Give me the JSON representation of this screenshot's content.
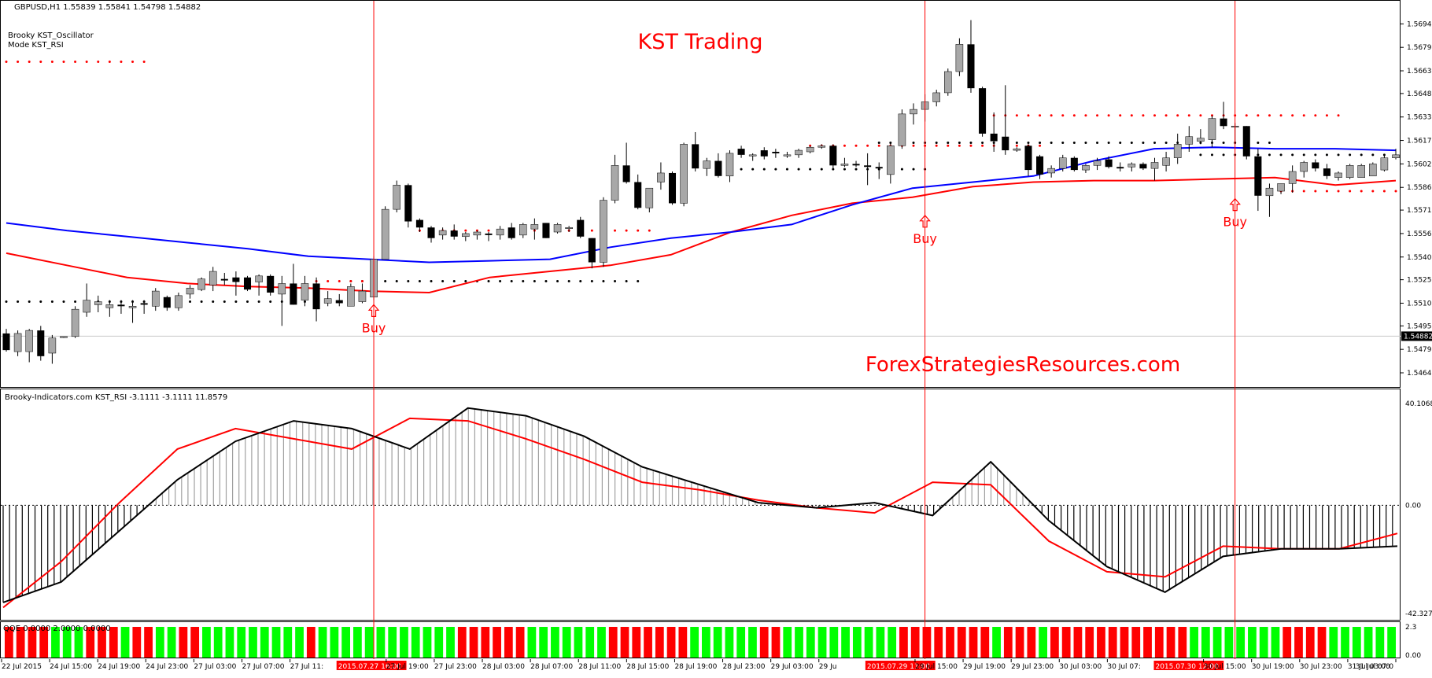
{
  "main_pane": {
    "header": "GBPUSD,H1  1.55839 1.55841 1.54798 1.54882",
    "indicator_name": "Brooky KST_Oscillator",
    "indicator_mode": "Mode KST_RSI",
    "watermark_title": "KST Trading",
    "watermark_site": "ForexStrategiesResources.com",
    "buy_labels": [
      "Buy",
      "Buy",
      "Buy"
    ],
    "current_price": "1.54882",
    "price_ticks": [
      "1.56945",
      "1.56790",
      "1.56635",
      "1.56485",
      "1.56330",
      "1.56175",
      "1.56020",
      "1.55865",
      "1.55715",
      "1.55560",
      "1.55405",
      "1.55255",
      "1.55100",
      "1.54950",
      "1.54795",
      "1.54640"
    ]
  },
  "oscillator_pane": {
    "header": "Brooky-Indicators.com KST_RSI -3.1111 -3.1111 11.8579",
    "ticks": [
      "40.1068",
      "0.00",
      "-42.3272"
    ]
  },
  "qqe_pane": {
    "header": "QQE 0.0000 2.0000 0.0000",
    "ticks": [
      "2.3",
      "0.00"
    ]
  },
  "time_axis": {
    "labels": [
      "22 Jul 2015",
      "24 Jul 15:00",
      "24 Jul 19:00",
      "24 Jul 23:00",
      "27 Jul 03:00",
      "27 Jul 07:00",
      "27 Jul 11:",
      "2015.07.27 16:00",
      "27 Jul 19:00",
      "27 Jul 23:00",
      "28 Jul 03:00",
      "28 Jul 07:00",
      "28 Jul 11:00",
      "28 Jul 15:00",
      "28 Jul 19:00",
      "28 Jul 23:00",
      "29 Jul 03:00",
      "29 Ju",
      "2015.07.29 11:00",
      "29 Jul 15:00",
      "29 Jul 19:00",
      "29 Jul 23:00",
      "30 Jul 03:00",
      "30 Jul 07:",
      "2015.07.30 12:00",
      "30 Jul 15:00",
      "30 Jul 19:00",
      "30 Jul 23:00",
      "31 Jul 03:00",
      "31 Jul 07:0"
    ]
  },
  "colors": {
    "bull_candle": "#a8a8a8",
    "bear_candle": "#000000",
    "ma_fast": "#0000ff",
    "ma_slow": "#ff0000",
    "signal_line": "#ff0000",
    "vline": "#ff0000",
    "qqe_up": "#00ff00",
    "qqe_down": "#ff0000",
    "qqe_neutral": "#808080",
    "watermark": "#ff0000"
  },
  "chart_data": {
    "type": "candlestick",
    "symbol": "GBPUSD",
    "timeframe": "H1",
    "y_range": [
      1.5464,
      1.5703
    ],
    "candles": [
      {
        "o": 1.549,
        "h": 1.5493,
        "l": 1.5478,
        "c": 1.5479
      },
      {
        "o": 1.5478,
        "h": 1.5492,
        "l": 1.5475,
        "c": 1.549
      },
      {
        "o": 1.5478,
        "h": 1.5493,
        "l": 1.5471,
        "c": 1.5492
      },
      {
        "o": 1.5492,
        "h": 1.5495,
        "l": 1.5472,
        "c": 1.5475
      },
      {
        "o": 1.5477,
        "h": 1.5489,
        "l": 1.547,
        "c": 1.5487
      },
      {
        "o": 1.5488,
        "h": 1.5488,
        "l": 1.5487,
        "c": 1.5488
      },
      {
        "o": 1.5488,
        "h": 1.5508,
        "l": 1.5487,
        "c": 1.5506
      },
      {
        "o": 1.5504,
        "h": 1.5523,
        "l": 1.5501,
        "c": 1.5512
      },
      {
        "o": 1.5509,
        "h": 1.5515,
        "l": 1.5504,
        "c": 1.5511
      },
      {
        "o": 1.5507,
        "h": 1.5512,
        "l": 1.5501,
        "c": 1.5509
      },
      {
        "o": 1.5509,
        "h": 1.5512,
        "l": 1.5503,
        "c": 1.5508
      },
      {
        "o": 1.5507,
        "h": 1.5512,
        "l": 1.5497,
        "c": 1.5508
      },
      {
        "o": 1.551,
        "h": 1.5512,
        "l": 1.5503,
        "c": 1.5509
      },
      {
        "o": 1.5508,
        "h": 1.552,
        "l": 1.5505,
        "c": 1.5518
      },
      {
        "o": 1.5514,
        "h": 1.5515,
        "l": 1.5505,
        "c": 1.5507
      },
      {
        "o": 1.5507,
        "h": 1.5517,
        "l": 1.5505,
        "c": 1.5515
      },
      {
        "o": 1.5516,
        "h": 1.5522,
        "l": 1.5513,
        "c": 1.552
      },
      {
        "o": 1.5519,
        "h": 1.5527,
        "l": 1.5518,
        "c": 1.5526
      },
      {
        "o": 1.5522,
        "h": 1.5534,
        "l": 1.5518,
        "c": 1.5531
      },
      {
        "o": 1.5526,
        "h": 1.553,
        "l": 1.5522,
        "c": 1.5525
      },
      {
        "o": 1.5527,
        "h": 1.5531,
        "l": 1.5515,
        "c": 1.5524
      },
      {
        "o": 1.5527,
        "h": 1.5528,
        "l": 1.5518,
        "c": 1.5519
      },
      {
        "o": 1.5524,
        "h": 1.5529,
        "l": 1.5515,
        "c": 1.5528
      },
      {
        "o": 1.5528,
        "h": 1.5529,
        "l": 1.5515,
        "c": 1.5517
      },
      {
        "o": 1.5516,
        "h": 1.5528,
        "l": 1.5495,
        "c": 1.5523
      },
      {
        "o": 1.5523,
        "h": 1.5536,
        "l": 1.5509,
        "c": 1.5509
      },
      {
        "o": 1.5512,
        "h": 1.5528,
        "l": 1.5508,
        "c": 1.5523
      },
      {
        "o": 1.5523,
        "h": 1.5527,
        "l": 1.5498,
        "c": 1.5506
      },
      {
        "o": 1.551,
        "h": 1.5518,
        "l": 1.5508,
        "c": 1.5513
      },
      {
        "o": 1.5512,
        "h": 1.5516,
        "l": 1.5508,
        "c": 1.551
      },
      {
        "o": 1.5508,
        "h": 1.5523,
        "l": 1.5508,
        "c": 1.5521
      },
      {
        "o": 1.5511,
        "h": 1.5523,
        "l": 1.551,
        "c": 1.5518
      },
      {
        "o": 1.5514,
        "h": 1.5541,
        "l": 1.5512,
        "c": 1.5539
      },
      {
        "o": 1.5539,
        "h": 1.5574,
        "l": 1.5539,
        "c": 1.5572
      },
      {
        "o": 1.5572,
        "h": 1.5591,
        "l": 1.557,
        "c": 1.5588
      },
      {
        "o": 1.5588,
        "h": 1.5589,
        "l": 1.556,
        "c": 1.5564
      },
      {
        "o": 1.5565,
        "h": 1.5566,
        "l": 1.5557,
        "c": 1.556
      },
      {
        "o": 1.556,
        "h": 1.5561,
        "l": 1.555,
        "c": 1.5553
      },
      {
        "o": 1.5555,
        "h": 1.556,
        "l": 1.5552,
        "c": 1.5558
      },
      {
        "o": 1.5558,
        "h": 1.5562,
        "l": 1.5552,
        "c": 1.5554
      },
      {
        "o": 1.5554,
        "h": 1.5557,
        "l": 1.5551,
        "c": 1.5556
      },
      {
        "o": 1.5555,
        "h": 1.5558,
        "l": 1.5552,
        "c": 1.5557
      },
      {
        "o": 1.5556,
        "h": 1.5557,
        "l": 1.5551,
        "c": 1.5555
      },
      {
        "o": 1.5555,
        "h": 1.5561,
        "l": 1.5552,
        "c": 1.5559
      },
      {
        "o": 1.556,
        "h": 1.5563,
        "l": 1.5552,
        "c": 1.5553
      },
      {
        "o": 1.5555,
        "h": 1.5563,
        "l": 1.5553,
        "c": 1.5562
      },
      {
        "o": 1.5559,
        "h": 1.5566,
        "l": 1.5552,
        "c": 1.5562
      },
      {
        "o": 1.5563,
        "h": 1.5563,
        "l": 1.5553,
        "c": 1.5553
      },
      {
        "o": 1.5557,
        "h": 1.5563,
        "l": 1.5556,
        "c": 1.5562
      },
      {
        "o": 1.556,
        "h": 1.5561,
        "l": 1.5557,
        "c": 1.556
      },
      {
        "o": 1.5565,
        "h": 1.5567,
        "l": 1.5553,
        "c": 1.5554
      },
      {
        "o": 1.5553,
        "h": 1.5553,
        "l": 1.5533,
        "c": 1.5537
      },
      {
        "o": 1.5537,
        "h": 1.558,
        "l": 1.5534,
        "c": 1.5578
      },
      {
        "o": 1.5578,
        "h": 1.5608,
        "l": 1.5576,
        "c": 1.5601
      },
      {
        "o": 1.5601,
        "h": 1.5616,
        "l": 1.5589,
        "c": 1.559
      },
      {
        "o": 1.559,
        "h": 1.5595,
        "l": 1.5572,
        "c": 1.5573
      },
      {
        "o": 1.5573,
        "h": 1.5586,
        "l": 1.557,
        "c": 1.5586
      },
      {
        "o": 1.559,
        "h": 1.5603,
        "l": 1.5585,
        "c": 1.5596
      },
      {
        "o": 1.5596,
        "h": 1.5597,
        "l": 1.5575,
        "c": 1.5576
      },
      {
        "o": 1.5576,
        "h": 1.5616,
        "l": 1.5574,
        "c": 1.5615
      },
      {
        "o": 1.5615,
        "h": 1.5623,
        "l": 1.5597,
        "c": 1.5599
      },
      {
        "o": 1.5599,
        "h": 1.5606,
        "l": 1.5594,
        "c": 1.5604
      },
      {
        "o": 1.5604,
        "h": 1.5609,
        "l": 1.5593,
        "c": 1.5594
      },
      {
        "o": 1.5594,
        "h": 1.5611,
        "l": 1.559,
        "c": 1.5609
      },
      {
        "o": 1.5612,
        "h": 1.5614,
        "l": 1.5606,
        "c": 1.5608
      },
      {
        "o": 1.5608,
        "h": 1.5609,
        "l": 1.5604,
        "c": 1.5608
      },
      {
        "o": 1.5611,
        "h": 1.5613,
        "l": 1.5605,
        "c": 1.5607
      },
      {
        "o": 1.561,
        "h": 1.5612,
        "l": 1.5606,
        "c": 1.5609
      },
      {
        "o": 1.5608,
        "h": 1.561,
        "l": 1.5606,
        "c": 1.5608
      },
      {
        "o": 1.5608,
        "h": 1.5612,
        "l": 1.5606,
        "c": 1.5611
      },
      {
        "o": 1.561,
        "h": 1.5614,
        "l": 1.5609,
        "c": 1.5613
      },
      {
        "o": 1.5613,
        "h": 1.5615,
        "l": 1.5612,
        "c": 1.5614
      },
      {
        "o": 1.5614,
        "h": 1.5615,
        "l": 1.5599,
        "c": 1.5601
      },
      {
        "o": 1.5601,
        "h": 1.5606,
        "l": 1.56,
        "c": 1.5602
      },
      {
        "o": 1.5602,
        "h": 1.5604,
        "l": 1.56,
        "c": 1.5601
      },
      {
        "o": 1.5601,
        "h": 1.5609,
        "l": 1.5588,
        "c": 1.56
      },
      {
        "o": 1.56,
        "h": 1.5603,
        "l": 1.5592,
        "c": 1.5599
      },
      {
        "o": 1.5595,
        "h": 1.5616,
        "l": 1.5589,
        "c": 1.5614
      },
      {
        "o": 1.5614,
        "h": 1.5638,
        "l": 1.5612,
        "c": 1.5635
      },
      {
        "o": 1.5635,
        "h": 1.5642,
        "l": 1.5628,
        "c": 1.5638
      },
      {
        "o": 1.5638,
        "h": 1.5648,
        "l": 1.563,
        "c": 1.5643
      },
      {
        "o": 1.5643,
        "h": 1.5651,
        "l": 1.564,
        "c": 1.5649
      },
      {
        "o": 1.5649,
        "h": 1.5665,
        "l": 1.5647,
        "c": 1.5663
      },
      {
        "o": 1.5663,
        "h": 1.5685,
        "l": 1.566,
        "c": 1.5681
      },
      {
        "o": 1.5681,
        "h": 1.5697,
        "l": 1.5649,
        "c": 1.5652
      },
      {
        "o": 1.5652,
        "h": 1.5653,
        "l": 1.562,
        "c": 1.5622
      },
      {
        "o": 1.5622,
        "h": 1.5636,
        "l": 1.561,
        "c": 1.5617
      },
      {
        "o": 1.562,
        "h": 1.5654,
        "l": 1.5608,
        "c": 1.5611
      },
      {
        "o": 1.5611,
        "h": 1.5613,
        "l": 1.561,
        "c": 1.5612
      },
      {
        "o": 1.5614,
        "h": 1.5615,
        "l": 1.5594,
        "c": 1.5598
      },
      {
        "o": 1.5607,
        "h": 1.5608,
        "l": 1.5592,
        "c": 1.5595
      },
      {
        "o": 1.5596,
        "h": 1.5601,
        "l": 1.5593,
        "c": 1.5599
      },
      {
        "o": 1.5599,
        "h": 1.5608,
        "l": 1.5597,
        "c": 1.5606
      },
      {
        "o": 1.5606,
        "h": 1.5607,
        "l": 1.5597,
        "c": 1.5598
      },
      {
        "o": 1.5598,
        "h": 1.5602,
        "l": 1.5596,
        "c": 1.5601
      },
      {
        "o": 1.5601,
        "h": 1.5606,
        "l": 1.5598,
        "c": 1.5604
      },
      {
        "o": 1.5605,
        "h": 1.5607,
        "l": 1.5599,
        "c": 1.56
      },
      {
        "o": 1.56,
        "h": 1.5603,
        "l": 1.5597,
        "c": 1.5599
      },
      {
        "o": 1.56,
        "h": 1.5603,
        "l": 1.5597,
        "c": 1.5602
      },
      {
        "o": 1.5602,
        "h": 1.5603,
        "l": 1.5598,
        "c": 1.5599
      },
      {
        "o": 1.5599,
        "h": 1.5606,
        "l": 1.5591,
        "c": 1.5603
      },
      {
        "o": 1.5601,
        "h": 1.561,
        "l": 1.5597,
        "c": 1.5606
      },
      {
        "o": 1.5606,
        "h": 1.5622,
        "l": 1.5602,
        "c": 1.5615
      },
      {
        "o": 1.5615,
        "h": 1.5627,
        "l": 1.561,
        "c": 1.562
      },
      {
        "o": 1.5617,
        "h": 1.5625,
        "l": 1.5615,
        "c": 1.5619
      },
      {
        "o": 1.5618,
        "h": 1.5634,
        "l": 1.5613,
        "c": 1.5632
      },
      {
        "o": 1.5632,
        "h": 1.5643,
        "l": 1.5625,
        "c": 1.5627
      },
      {
        "o": 1.5627,
        "h": 1.5629,
        "l": 1.5615,
        "c": 1.5627
      },
      {
        "o": 1.5627,
        "h": 1.5627,
        "l": 1.5605,
        "c": 1.5607
      },
      {
        "o": 1.5607,
        "h": 1.5612,
        "l": 1.5571,
        "c": 1.5581
      },
      {
        "o": 1.5581,
        "h": 1.5589,
        "l": 1.5567,
        "c": 1.5586
      },
      {
        "o": 1.5584,
        "h": 1.5589,
        "l": 1.5582,
        "c": 1.5589
      },
      {
        "o": 1.5589,
        "h": 1.5601,
        "l": 1.5583,
        "c": 1.5597
      },
      {
        "o": 1.5597,
        "h": 1.5604,
        "l": 1.5593,
        "c": 1.5603
      },
      {
        "o": 1.5603,
        "h": 1.5605,
        "l": 1.5597,
        "c": 1.5599
      },
      {
        "o": 1.5599,
        "h": 1.5602,
        "l": 1.5592,
        "c": 1.5594
      },
      {
        "o": 1.5593,
        "h": 1.5597,
        "l": 1.5591,
        "c": 1.5596
      },
      {
        "o": 1.5593,
        "h": 1.5602,
        "l": 1.5592,
        "c": 1.5601
      },
      {
        "o": 1.5593,
        "h": 1.5602,
        "l": 1.5593,
        "c": 1.5601
      },
      {
        "o": 1.5594,
        "h": 1.5603,
        "l": 1.5594,
        "c": 1.5602
      },
      {
        "o": 1.5598,
        "h": 1.5608,
        "l": 1.5597,
        "c": 1.5606
      },
      {
        "o": 1.5606,
        "h": 1.5612,
        "l": 1.5605,
        "c": 1.5608
      }
    ],
    "ma_blue": [
      1.5563,
      1.5558,
      1.5554,
      1.555,
      1.5546,
      1.5541,
      1.5539,
      1.5537,
      1.5538,
      1.5539,
      1.5547,
      1.5553,
      1.5557,
      1.5562,
      1.5575,
      1.5586,
      1.559,
      1.5594,
      1.5604,
      1.5612,
      1.5613,
      1.5612,
      1.5612,
      1.5611
    ],
    "ma_red": [
      1.5543,
      1.5535,
      1.5527,
      1.5523,
      1.5521,
      1.552,
      1.5518,
      1.5517,
      1.5527,
      1.5531,
      1.5535,
      1.5542,
      1.5557,
      1.5568,
      1.5576,
      1.558,
      1.5587,
      1.559,
      1.5591,
      1.5591,
      1.5592,
      1.5593,
      1.5588,
      1.5591
    ],
    "kst_rsi": [
      -38,
      -30,
      -10,
      10,
      25,
      33,
      30,
      22,
      38,
      35,
      27,
      15,
      8,
      1,
      -1,
      1,
      -4,
      17,
      -6,
      -24,
      -34,
      -20,
      -17,
      -17,
      -16
    ],
    "kst_signal": [
      -40,
      -22,
      1,
      22,
      30,
      26,
      22,
      34,
      33,
      26,
      18,
      9,
      6,
      2,
      -1,
      -3,
      9,
      8,
      -14,
      -26,
      -28,
      -16,
      -17,
      -17,
      -11
    ],
    "kst_range": [
      -42.3272,
      40.1068
    ],
    "qqe_pattern": "RRRRGGGRRRGRRGGRRGGGGGGGGGRGGGGGGGGGGGGRRRRRRGGGGGGGRRRRRRRGGGGGGRRGGGGGGGGGGRRRRRRRRGRRRGRRRRRRRRRRRRGGGGGGGGRRRRGGGGGG",
    "buy_signal_indices": [
      32,
      80,
      107
    ]
  }
}
